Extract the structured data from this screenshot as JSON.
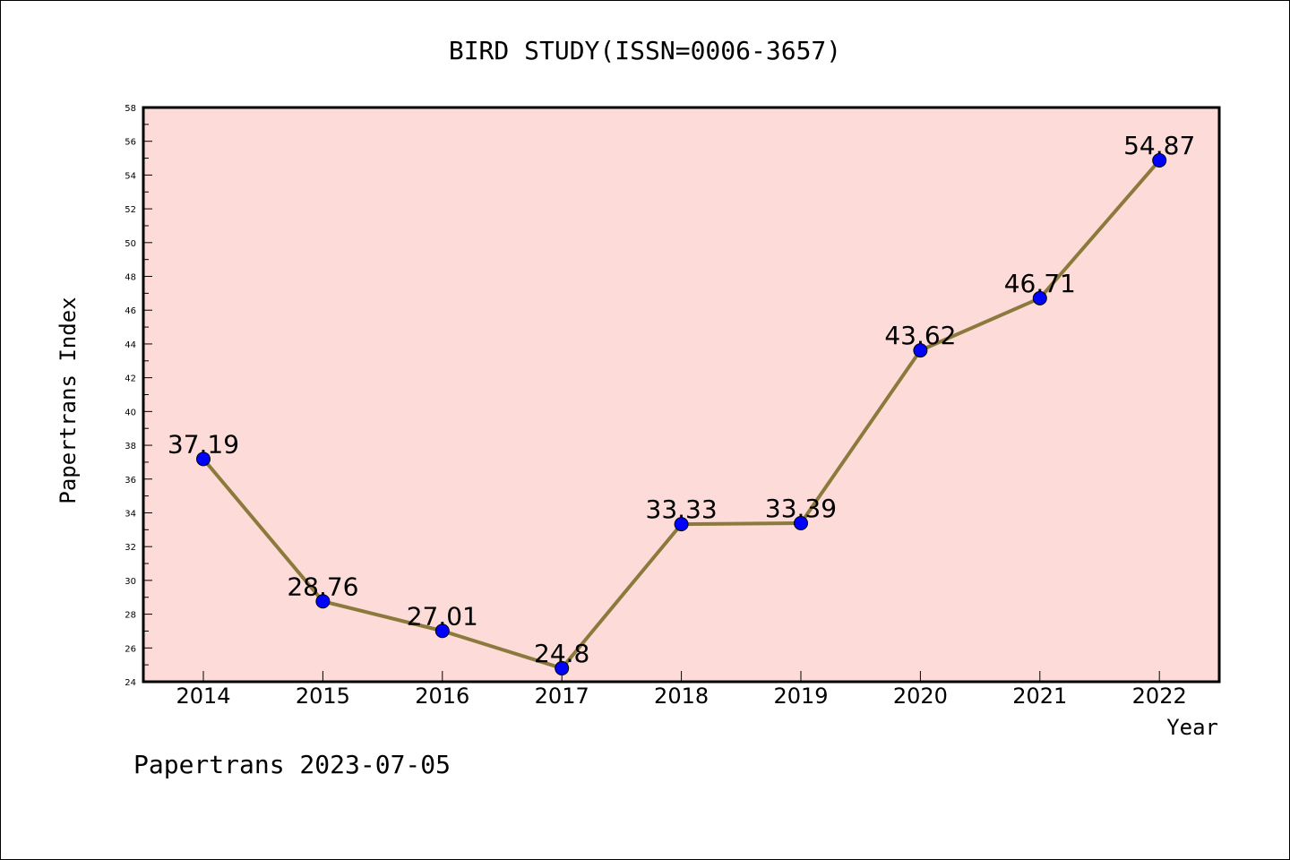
{
  "chart_data": {
    "type": "line",
    "title": "BIRD STUDY(ISSN=0006-3657)",
    "xlabel": "Year",
    "ylabel": "Papertrans Index",
    "categories": [
      "2014",
      "2015",
      "2016",
      "2017",
      "2018",
      "2019",
      "2020",
      "2021",
      "2022"
    ],
    "values": [
      37.19,
      28.76,
      27.01,
      24.8,
      33.33,
      33.39,
      43.62,
      46.71,
      54.87
    ],
    "data_labels": [
      "37.19",
      "28.76",
      "27.01",
      "24.8",
      "33.33",
      "33.39",
      "43.62",
      "46.71",
      "54.87"
    ],
    "ylim": [
      24,
      58
    ],
    "yticks": [
      "24",
      "26",
      "28",
      "30",
      "32",
      "34",
      "36",
      "38",
      "40",
      "42",
      "44",
      "46",
      "48",
      "50",
      "52",
      "54",
      "56",
      "58"
    ],
    "grid": false,
    "legend": "none",
    "plot_background": "#fddbd9",
    "line_color": "#8b7a3c",
    "marker_color": "#0000ff"
  },
  "footer": "Papertrans 2023-07-05"
}
